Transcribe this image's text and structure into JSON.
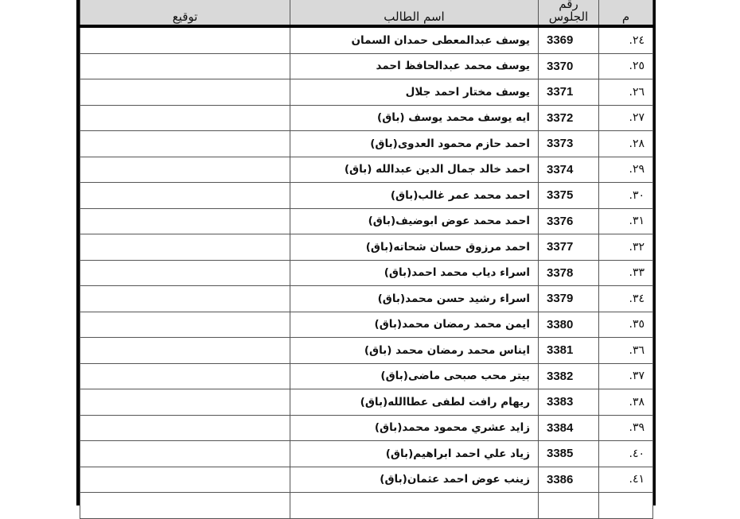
{
  "header": {
    "index": "م",
    "seat_number": [
      "رقم",
      "الجلوس"
    ],
    "name": "اسم الطالب",
    "signature": "توقيع"
  },
  "rows": [
    {
      "index": "٢٤.",
      "seat": "3369",
      "name": "يوسف عبدالمعطى حمدان السمان"
    },
    {
      "index": "٢٥.",
      "seat": "3370",
      "name": "يوسف محمد عبدالحافظ احمد"
    },
    {
      "index": "٢٦.",
      "seat": "3371",
      "name": "يوسف مختار احمد جلال"
    },
    {
      "index": "٢٧.",
      "seat": "3372",
      "name": "ايه يوسف محمد يوسف (باق)"
    },
    {
      "index": "٢٨.",
      "seat": "3373",
      "name": "احمد حازم محمود العدوى(باق)"
    },
    {
      "index": "٢٩.",
      "seat": "3374",
      "name": "احمد خالد جمال الدين عبدالله (باق)"
    },
    {
      "index": "٣٠.",
      "seat": "3375",
      "name": "احمد محمد عمر غالب(باق)"
    },
    {
      "index": "٣١.",
      "seat": "3376",
      "name": "احمد محمد عوض ابوضيف(باق)"
    },
    {
      "index": "٣٢.",
      "seat": "3377",
      "name": "احمد مرزوق حسان شحاته(باق)"
    },
    {
      "index": "٣٣.",
      "seat": "3378",
      "name": "اسراء دياب محمد احمد(باق)"
    },
    {
      "index": "٣٤.",
      "seat": "3379",
      "name": "اسراء رشيد حسن محمد(باق)"
    },
    {
      "index": "٣٥.",
      "seat": "3380",
      "name": "ايمن  محمد  رمضان  محمد(باق)"
    },
    {
      "index": "٣٦.",
      "seat": "3381",
      "name": "ايناس محمد رمضان محمد (باق)"
    },
    {
      "index": "٣٧.",
      "seat": "3382",
      "name": "بيتر محب صبحى ماضى(باق)"
    },
    {
      "index": "٣٨.",
      "seat": "3383",
      "name": "ريهام رافت لطفى عطاالله(باق)"
    },
    {
      "index": "٣٩.",
      "seat": "3384",
      "name": "زايد عشري محمود محمد(باق)"
    },
    {
      "index": "٤٠.",
      "seat": "3385",
      "name": "زياد علي احمد ابراهيم(باق)"
    },
    {
      "index": "٤١.",
      "seat": "3386",
      "name": "زينب عوض احمد عثمان(باق)"
    },
    {
      "index": "",
      "seat": "",
      "name": ""
    }
  ]
}
